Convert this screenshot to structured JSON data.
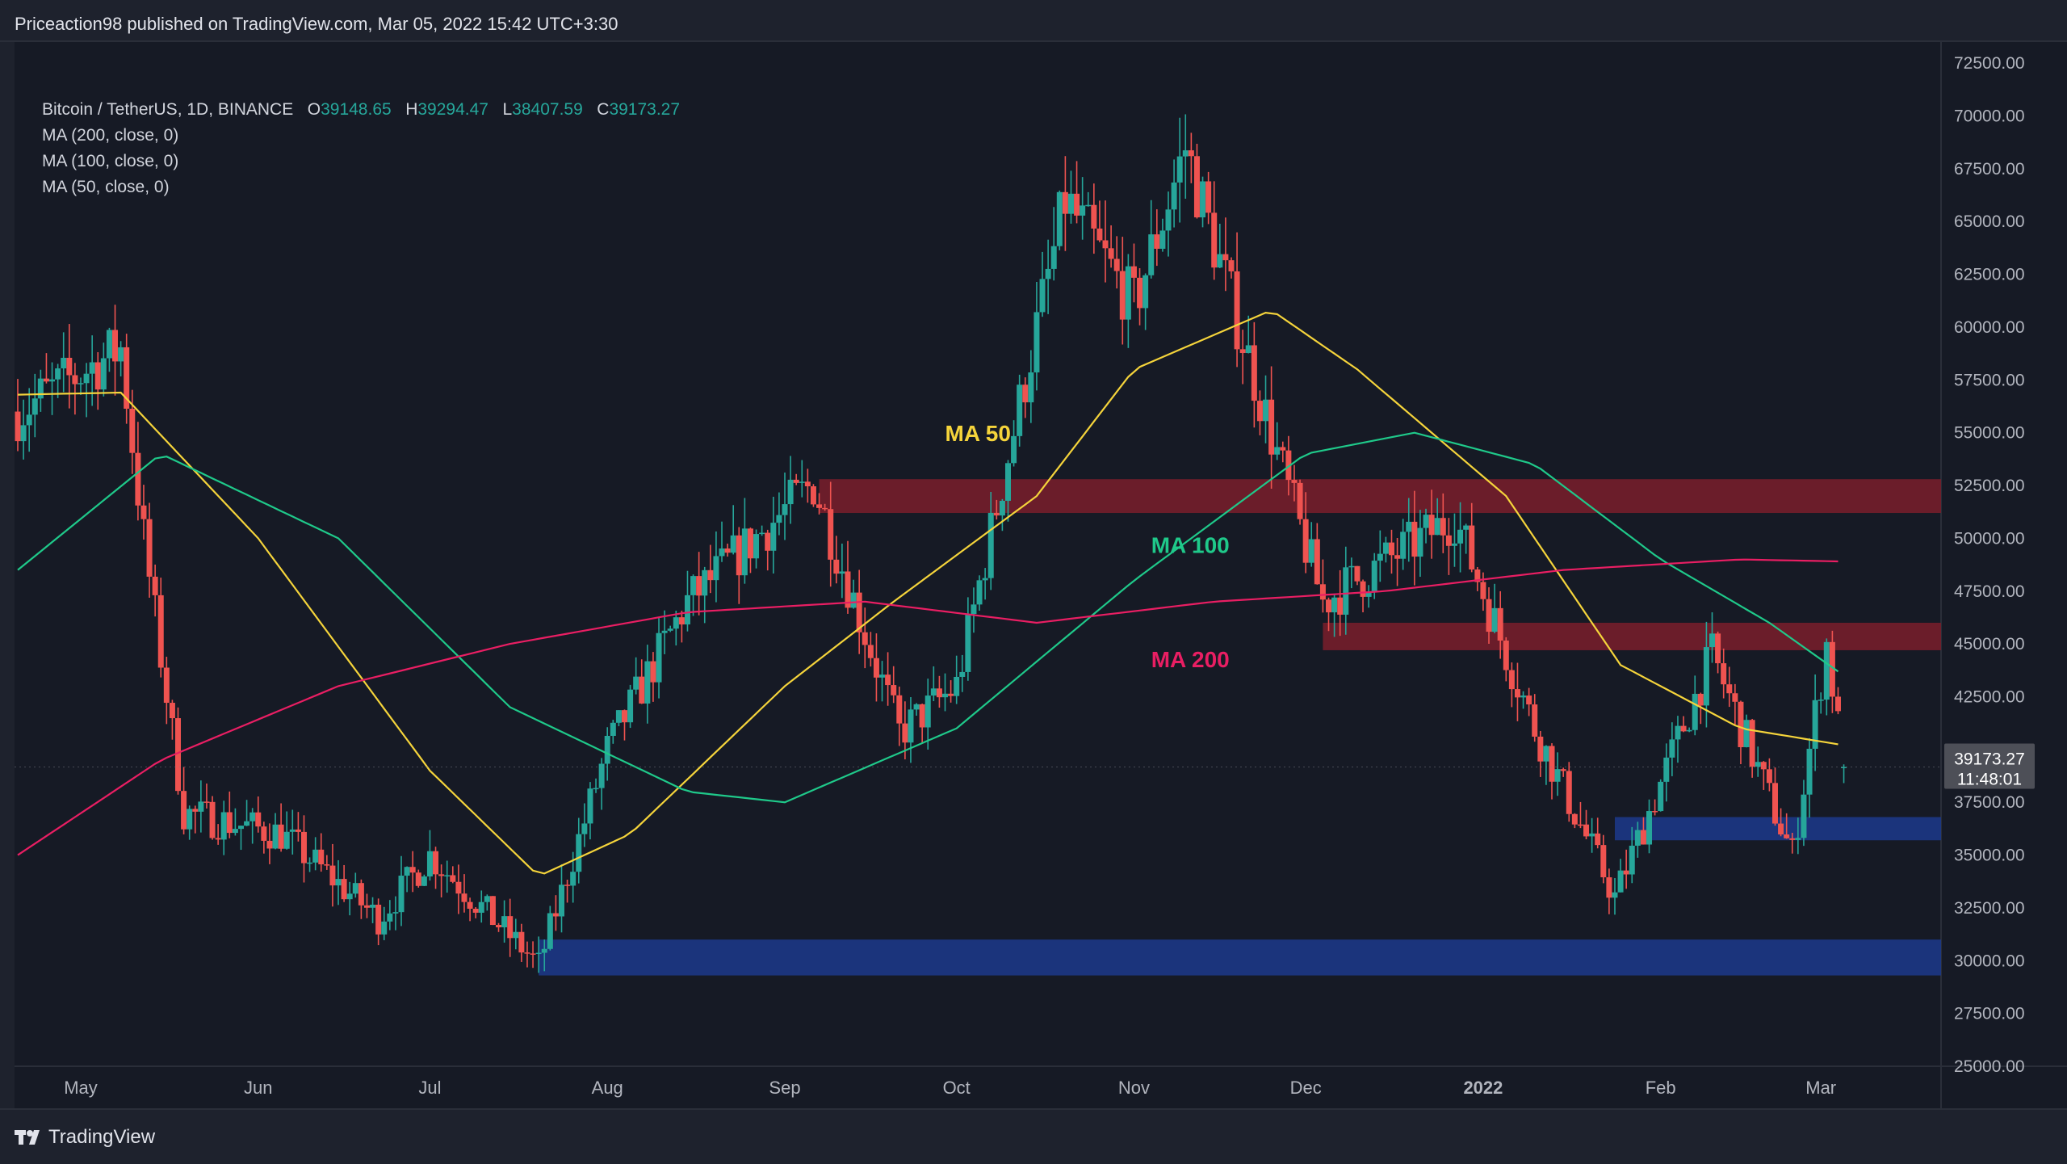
{
  "header": {
    "published": "Priceaction98 published on TradingView.com, Mar 05, 2022 15:42 UTC+3:30"
  },
  "legend": {
    "symbol": "Bitcoin / TetherUS, 1D, BINANCE",
    "o_label": "O",
    "o": "39148.65",
    "h_label": "H",
    "h": "39294.47",
    "l_label": "L",
    "l": "38407.59",
    "c_label": "C",
    "c": "39173.27",
    "ma200": "MA (200, close, 0)",
    "ma100": "MA (100, close, 0)",
    "ma50": "MA (50, close, 0)"
  },
  "price_tag": {
    "price": "39173.27",
    "countdown": "11:48:01"
  },
  "footer": {
    "brand": "TradingView"
  },
  "colors": {
    "up": "#26a69a",
    "down": "#ef5350",
    "ma50": "#f5d43b",
    "ma100": "#1fc98a",
    "ma200": "#e91e63",
    "resistance": "#7a1e2c",
    "support": "#1c3a8c"
  },
  "chart_data": {
    "type": "candlestick",
    "ylim": [
      25000,
      73500
    ],
    "y_ticks": [
      "72500.00",
      "70000.00",
      "67500.00",
      "65000.00",
      "62500.00",
      "60000.00",
      "57500.00",
      "55000.00",
      "52500.00",
      "50000.00",
      "47500.00",
      "45000.00",
      "42500.00",
      "40000.00",
      "37500.00",
      "35000.00",
      "32500.00",
      "30000.00",
      "27500.00",
      "25000.00"
    ],
    "x_ticks": [
      "May",
      "Jun",
      "Jul",
      "Aug",
      "Sep",
      "Oct",
      "Nov",
      "Dec",
      "2022",
      "Feb",
      "Mar"
    ],
    "ma_labels": {
      "ma50": "MA 50",
      "ma100": "MA 100",
      "ma200": "MA 200"
    },
    "zones": [
      {
        "kind": "resistance",
        "from": "Sep 07",
        "low": 51200,
        "high": 52800
      },
      {
        "kind": "resistance",
        "from": "Dec 04",
        "low": 44700,
        "high": 46000
      },
      {
        "kind": "support",
        "from": "Jan 24",
        "low": 35700,
        "high": 36800
      },
      {
        "kind": "support",
        "from": "Jul 20",
        "low": 29300,
        "high": 31000
      }
    ],
    "price_path": [
      [
        "Apr 20",
        56000
      ],
      [
        "May 08",
        59000
      ],
      [
        "May 12",
        50000
      ],
      [
        "May 19",
        37000
      ],
      [
        "Jun 05",
        36000
      ],
      [
        "Jun 22",
        32000
      ],
      [
        "Jul 01",
        35000
      ],
      [
        "Jul 20",
        29800
      ],
      [
        "Aug 01",
        40000
      ],
      [
        "Aug 15",
        47000
      ],
      [
        "Sep 06",
        52600
      ],
      [
        "Sep 21",
        40800
      ],
      [
        "Oct 01",
        43000
      ],
      [
        "Oct 20",
        66000
      ],
      [
        "Nov 01",
        61000
      ],
      [
        "Nov 10",
        68500
      ],
      [
        "Nov 26",
        54000
      ],
      [
        "Dec 04",
        47000
      ],
      [
        "Dec 27",
        51000
      ],
      [
        "Jan 10",
        41000
      ],
      [
        "Jan 24",
        33000
      ],
      [
        "Feb 10",
        44500
      ],
      [
        "Feb 24",
        35000
      ],
      [
        "Mar 02",
        45000
      ],
      [
        "Mar 05",
        39173
      ]
    ],
    "ma50": [
      [
        "Apr 20",
        56800
      ],
      [
        "May 08",
        56900
      ],
      [
        "Jun 01",
        50000
      ],
      [
        "Jul 01",
        39000
      ],
      [
        "Jul 20",
        34000
      ],
      [
        "Aug 05",
        36000
      ],
      [
        "Sep 01",
        43000
      ],
      [
        "Sep 20",
        47000
      ],
      [
        "Oct 15",
        52000
      ],
      [
        "Nov 01",
        58000
      ],
      [
        "Nov 25",
        60800
      ],
      [
        "Dec 10",
        58000
      ],
      [
        "Jan 05",
        52000
      ],
      [
        "Jan 25",
        44000
      ],
      [
        "Feb 15",
        41000
      ],
      [
        "Mar 05",
        40200
      ]
    ],
    "ma100": [
      [
        "Apr 20",
        48500
      ],
      [
        "May 15",
        54000
      ],
      [
        "Jun 15",
        50000
      ],
      [
        "Jul 15",
        42000
      ],
      [
        "Aug 15",
        38000
      ],
      [
        "Sep 01",
        37500
      ],
      [
        "Oct 01",
        41000
      ],
      [
        "Nov 01",
        48000
      ],
      [
        "Dec 01",
        54000
      ],
      [
        "Dec 20",
        55000
      ],
      [
        "Jan 10",
        53500
      ],
      [
        "Feb 01",
        49000
      ],
      [
        "Feb 20",
        46000
      ],
      [
        "Mar 05",
        43500
      ]
    ],
    "ma200": [
      [
        "Apr 20",
        35000
      ],
      [
        "May 15",
        39500
      ],
      [
        "Jun 15",
        43000
      ],
      [
        "Jul 15",
        45000
      ],
      [
        "Aug 15",
        46500
      ],
      [
        "Sep 15",
        47000
      ],
      [
        "Oct 15",
        46000
      ],
      [
        "Nov 15",
        47000
      ],
      [
        "Dec 15",
        47500
      ],
      [
        "Jan 15",
        48500
      ],
      [
        "Feb 15",
        49000
      ],
      [
        "Mar 05",
        48900
      ]
    ]
  }
}
